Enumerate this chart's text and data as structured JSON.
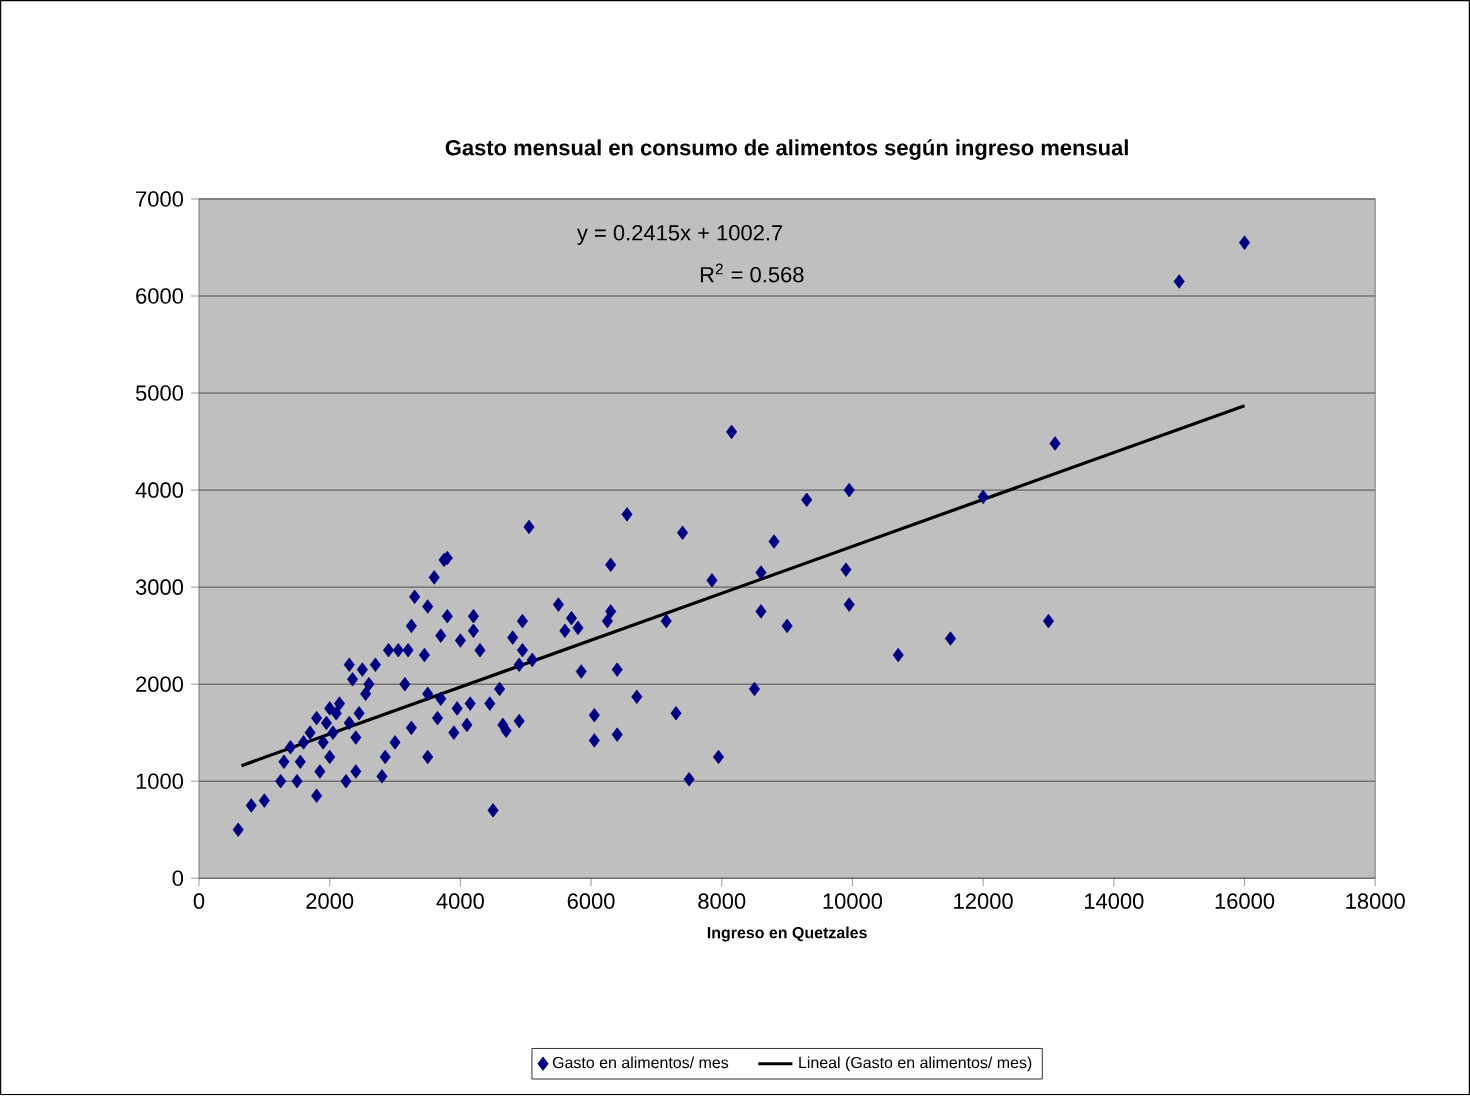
{
  "chart_data": {
    "type": "scatter",
    "title": "Gasto mensual en consumo de alimentos según ingreso mensual",
    "xlabel": "Ingreso en Quetzales",
    "annotations": [
      "y = 0.2415x + 1002.7",
      "R$^{2}$ = 0.568"
    ],
    "xlim": [
      0,
      18000
    ],
    "xticks": [
      0,
      2000,
      4000,
      6000,
      8000,
      10000,
      12000,
      14000,
      16000,
      18000
    ],
    "ylim": [
      0,
      7000
    ],
    "yticks": [
      0,
      1000,
      2000,
      3000,
      4000,
      5000,
      6000,
      7000
    ],
    "grid": "y",
    "legend": "bottom",
    "series": [
      {
        "name": "Gasto en alimentos/ mes",
        "color": "#000080",
        "marker": "diamond",
        "x": [
          16000,
          15000,
          13100,
          13000,
          12000,
          11500,
          10700,
          9950,
          9900,
          9950,
          9300,
          9000,
          8800,
          8600,
          8600,
          8500,
          8150,
          7950,
          7850,
          7400,
          7500,
          7300,
          7150,
          6700,
          6550,
          6400,
          6400,
          6300,
          6300,
          6250,
          6050,
          6050,
          5800,
          5850,
          5700,
          5600,
          5500,
          5100,
          5050,
          4950,
          4950,
          4900,
          4900,
          4800,
          4700,
          4650,
          4600,
          4450,
          4500,
          4300,
          4200,
          4200,
          4150,
          4100,
          4000,
          3950,
          3900,
          3800,
          3750,
          3800,
          3700,
          3700,
          3650,
          3600,
          3500,
          3500,
          3500,
          3450,
          3300,
          3250,
          3200,
          3250,
          3150,
          3050,
          3000,
          2900,
          2850,
          2800,
          2700,
          2600,
          2550,
          2500,
          2450,
          2400,
          2400,
          2350,
          2300,
          2300,
          2250,
          2150,
          2100,
          2050,
          2000,
          2000,
          1950,
          1900,
          1850,
          1800,
          1800,
          1700,
          1600,
          1550,
          1500,
          1400,
          1300,
          1250,
          1000,
          800,
          600
        ],
        "values": [
          6550,
          6150,
          4480,
          2650,
          3930,
          2470,
          2300,
          4000,
          3180,
          2820,
          3900,
          2600,
          3470,
          3150,
          2750,
          1950,
          4600,
          1250,
          3070,
          3560,
          1020,
          1700,
          2650,
          1870,
          3750,
          2150,
          1480,
          3230,
          2750,
          2650,
          1680,
          1420,
          2580,
          2130,
          2680,
          2550,
          2820,
          2250,
          3620,
          2650,
          2350,
          2200,
          1620,
          2480,
          1520,
          1580,
          1950,
          1800,
          700,
          2350,
          2700,
          2550,
          1800,
          1580,
          2450,
          1750,
          1500,
          3300,
          3280,
          2700,
          2500,
          1850,
          1650,
          3100,
          2800,
          1900,
          1250,
          2300,
          2900,
          2600,
          2350,
          1550,
          2000,
          2350,
          1400,
          2350,
          1250,
          1050,
          2200,
          2000,
          1900,
          2150,
          1700,
          1450,
          1100,
          2050,
          2200,
          1600,
          1000,
          1800,
          1700,
          1500,
          1750,
          1250,
          1600,
          1400,
          1100,
          1650,
          850,
          1500,
          1400,
          1200,
          1000,
          1350,
          1200,
          1000,
          800,
          750,
          500
        ]
      },
      {
        "name": "Lineal (Gasto en alimentos/ mes)",
        "type": "line",
        "color": "#000000",
        "marker": "none",
        "line_style": "solid",
        "x": [
          650,
          16000
        ],
        "values": [
          1160,
          4870
        ]
      }
    ]
  }
}
